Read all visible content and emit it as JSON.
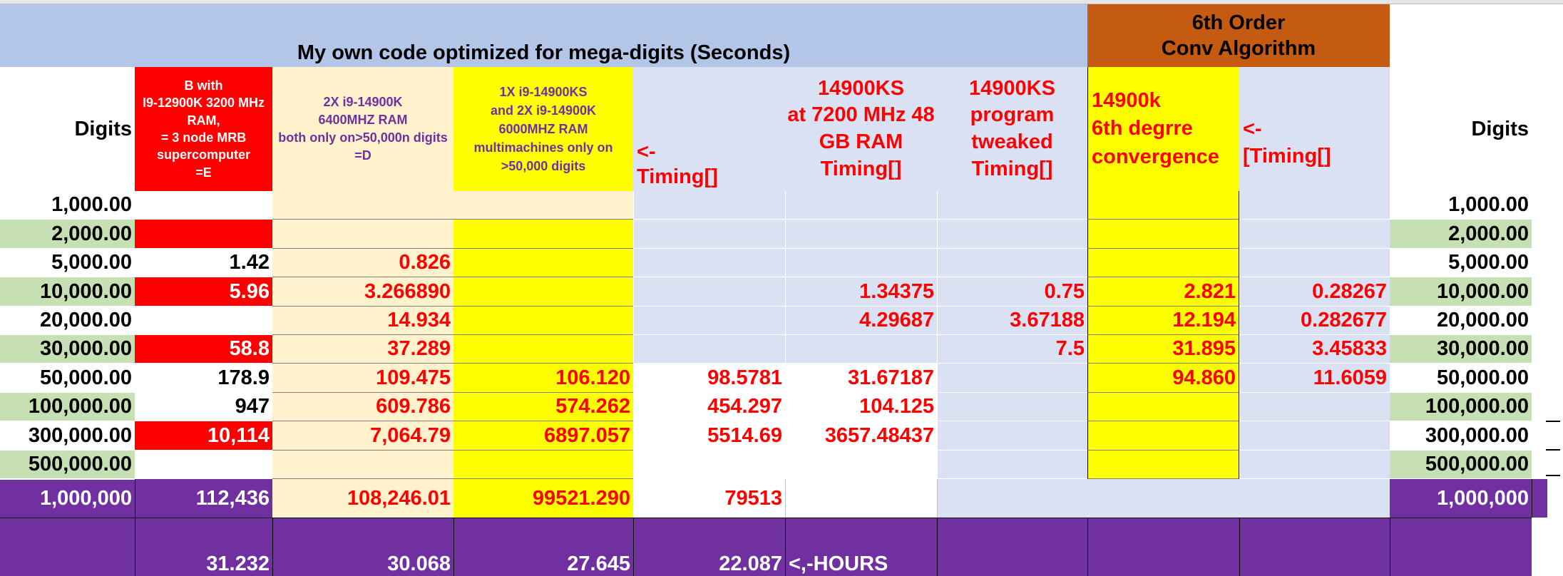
{
  "colors": {
    "header_blue": "#b4c6e7",
    "pale_blue": "#d9e1f2",
    "orange_header": "#c55a11",
    "peach": "#fff2cc",
    "yellow": "#ffff00",
    "red_fill": "#ff0000",
    "green_band": "#c6e0b4",
    "purple": "#7030a0",
    "red_text": "#ff0000"
  },
  "header": {
    "banner": "My own code optimized for mega-digits  (Seconds)",
    "sixth_order_line1": "6th Order",
    "sixth_order_line2": "Conv Algorithm"
  },
  "columns": {
    "digits_left": "Digits",
    "b_line1": "B with",
    "b_line2": "I9-12900K 3200 MHz",
    "b_line3": "RAM,",
    "b_line4": "= 3 node MRB",
    "b_line5": "supercomputer",
    "b_line6": "=E",
    "d_line1": "2X i9-14900K",
    "d_line2": "6400MHZ RAM",
    "d_line3": "both only on>50,000n digits",
    "d_line4": "=D",
    "ks_line1": "1X i9-14900KS",
    "ks_line2": "and 2X i9-14900K",
    "ks_line3": "6000MHZ RAM",
    "ks_line4": "multimachines only on",
    "ks_line5": ">50,000 digits",
    "timing_arrow": "<-",
    "timing_label": "Timing[]",
    "ks7200_line1": "14900KS",
    "ks7200_line2": "at 7200 MHz 48",
    "ks7200_line3": "GB RAM",
    "ks7200_line4": "Timing[]",
    "tweak_line1": "14900KS",
    "tweak_line2": "program",
    "tweak_line3": "tweaked",
    "tweak_line4": "Timing[]",
    "k6_line1": "14900k",
    "k6_line2": "6th degrre",
    "k6_line3": "convergence",
    "timing2_arrow": "<-",
    "timing2_label": "[Timing[]",
    "digits_right": "Digits"
  },
  "rows": [
    {
      "digits": "1,000.00",
      "b": "",
      "d": "",
      "ks": "",
      "t1": "",
      "t2": "",
      "t3": "",
      "k6": "",
      "t4": "",
      "digits_r": "1,000.00"
    },
    {
      "digits": "2,000.00",
      "b": "",
      "d": "",
      "ks": "",
      "t1": "",
      "t2": "",
      "t3": "",
      "k6": "",
      "t4": "",
      "digits_r": "2,000.00"
    },
    {
      "digits": "5,000.00",
      "b": "1.42",
      "d": "0.826",
      "ks": "",
      "t1": "",
      "t2": "",
      "t3": "",
      "k6": "",
      "t4": "",
      "digits_r": "5,000.00"
    },
    {
      "digits": "10,000.00",
      "b": "5.96",
      "d": "3.266890",
      "ks": "",
      "t1": "",
      "t2": "1.34375",
      "t3": "0.75",
      "k6": "2.821",
      "t4": "0.28267",
      "digits_r": "10,000.00"
    },
    {
      "digits": "20,000.00",
      "b": "",
      "d": "14.934",
      "ks": "",
      "t1": "",
      "t2": "4.29687",
      "t3": "3.67188",
      "k6": "12.194",
      "t4": "0.282677",
      "digits_r": "20,000.00"
    },
    {
      "digits": "30,000.00",
      "b": "58.8",
      "d": "37.289",
      "ks": "",
      "t1": "",
      "t2": "",
      "t3": "7.5",
      "k6": "31.895",
      "t4": "3.45833",
      "digits_r": "30,000.00"
    },
    {
      "digits": "50,000.00",
      "b": "178.9",
      "d": "109.475",
      "ks": "106.120",
      "t1": "98.5781",
      "t2": "31.67187",
      "t3": "",
      "k6": "94.860",
      "t4": "11.6059",
      "digits_r": "50,000.00"
    },
    {
      "digits": "100,000.00",
      "b": "947",
      "d": "609.786",
      "ks": "574.262",
      "t1": "454.297",
      "t2": "104.125",
      "t3": "",
      "k6": "",
      "t4": "",
      "digits_r": "100,000.00"
    },
    {
      "digits": "300,000.00",
      "b": "10,114",
      "d": "7,064.79",
      "ks": "6897.057",
      "t1": "5514.69",
      "t2": "3657.48437",
      "t3": "",
      "k6": "",
      "t4": "",
      "digits_r": "300,000.00"
    },
    {
      "digits": "500,000.00",
      "b": "",
      "d": "",
      "ks": "",
      "t1": "",
      "t2": "",
      "t3": "",
      "k6": "",
      "t4": "",
      "digits_r": "500,000.00"
    }
  ],
  "million_row": {
    "digits": "1,000,000",
    "b": "112,436",
    "d": "108,246.01",
    "ks": "99521.290",
    "t1": "79513",
    "digits_r": "1,000,000"
  },
  "hours_row": {
    "b": "31.232",
    "d": "30.068",
    "ks": "27.645",
    "t1": "22.087",
    "label": "<,-HOURS"
  }
}
